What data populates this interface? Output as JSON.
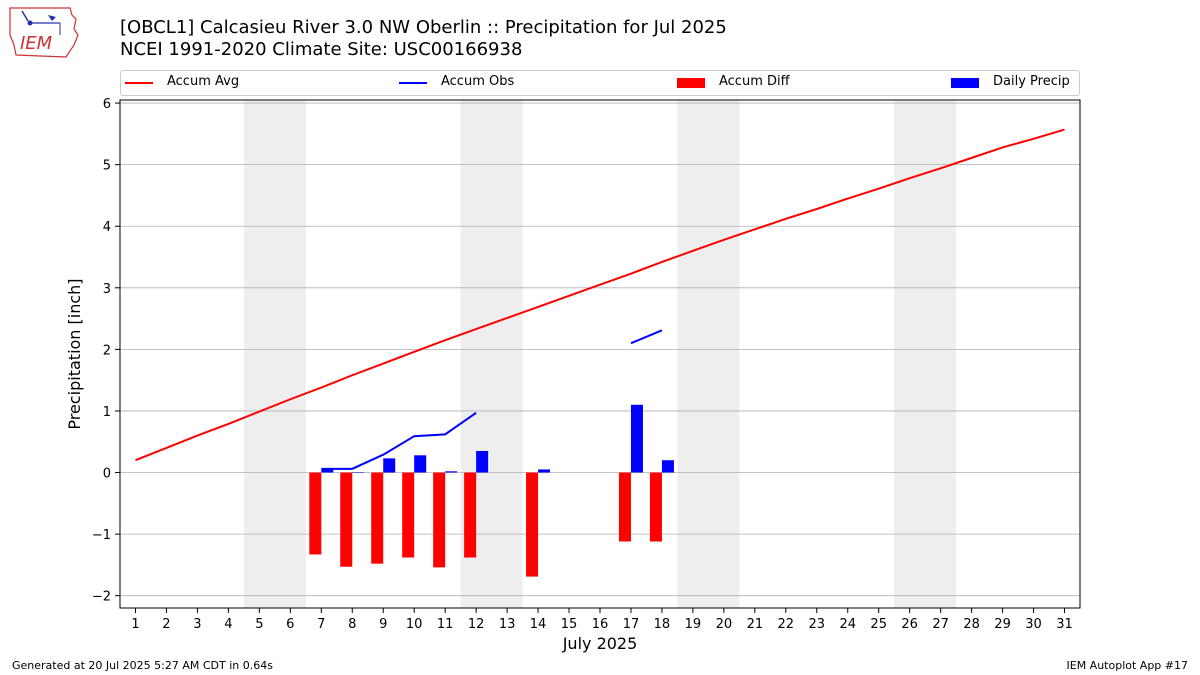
{
  "header": {
    "title_line1": "[OBCL1] Calcasieu River 3.0 NW Oberlin :: Precipitation for Jul 2025",
    "title_line2": "NCEI 1991-2020 Climate Site: USC00166938",
    "logo_text": "IEM"
  },
  "footer": {
    "generated": "Generated at 20 Jul 2025 5:27 AM CDT in 0.64s",
    "app": "IEM Autoplot App #17"
  },
  "colors": {
    "accum_avg": "#ff0000",
    "accum_obs": "#0000ff",
    "accum_diff": "#ff0000",
    "daily_precip": "#0000ff",
    "weekend_shade": "#eeeeee",
    "grid": "#b0b0b0"
  },
  "chart_data": {
    "type": "bar",
    "xlabel": "July 2025",
    "ylabel": "Precipitation [inch]",
    "xlim": [
      0.5,
      31.5
    ],
    "ylim": [
      -2.2,
      6.05
    ],
    "x_ticks": [
      1,
      2,
      3,
      4,
      5,
      6,
      7,
      8,
      9,
      10,
      11,
      12,
      13,
      14,
      15,
      16,
      17,
      18,
      19,
      20,
      21,
      22,
      23,
      24,
      25,
      26,
      27,
      28,
      29,
      30,
      31
    ],
    "y_ticks": [
      -2,
      -1,
      0,
      1,
      2,
      3,
      4,
      5,
      6
    ],
    "grid": "horizontal",
    "legend_placement": "top",
    "legend": [
      "Accum Avg",
      "Accum Obs",
      "Accum Diff",
      "Daily Precip"
    ],
    "shaded_days": [
      [
        4.5,
        6.5
      ],
      [
        11.5,
        13.5
      ],
      [
        18.5,
        20.5
      ],
      [
        25.5,
        27.5
      ]
    ],
    "series": [
      {
        "name": "Accum Avg",
        "kind": "line",
        "x": [
          1,
          2,
          3,
          4,
          5,
          6,
          7,
          8,
          9,
          10,
          11,
          12,
          13,
          14,
          15,
          16,
          17,
          18,
          19,
          20,
          21,
          22,
          23,
          24,
          25,
          26,
          27,
          28,
          29,
          30,
          31
        ],
        "values": [
          0.2,
          0.4,
          0.6,
          0.79,
          0.99,
          1.19,
          1.38,
          1.58,
          1.77,
          1.96,
          2.15,
          2.33,
          2.51,
          2.69,
          2.87,
          3.05,
          3.23,
          3.42,
          3.6,
          3.78,
          3.95,
          4.12,
          4.28,
          4.45,
          4.61,
          4.78,
          4.94,
          5.11,
          5.28,
          5.42,
          5.57
        ]
      },
      {
        "name": "Accum Obs",
        "kind": "line",
        "segments": [
          {
            "x": [
              7,
              8,
              9,
              10,
              11,
              12
            ],
            "values": [
              0.06,
              0.06,
              0.29,
              0.59,
              0.62,
              0.97
            ]
          },
          {
            "x": [
              17,
              18
            ],
            "values": [
              2.1,
              2.31
            ]
          }
        ]
      },
      {
        "name": "Accum Diff",
        "kind": "bar",
        "x": [
          7,
          8,
          9,
          10,
          11,
          12,
          14,
          17,
          18
        ],
        "values": [
          -1.33,
          -1.53,
          -1.48,
          -1.38,
          -1.54,
          -1.38,
          -1.69,
          -1.12,
          -1.12
        ]
      },
      {
        "name": "Daily Precip",
        "kind": "bar",
        "x": [
          7,
          8,
          9,
          10,
          11,
          12,
          14,
          17,
          18
        ],
        "values": [
          0.06,
          0.0,
          0.23,
          0.28,
          0.02,
          0.35,
          0.05,
          1.1,
          0.2
        ]
      }
    ]
  }
}
